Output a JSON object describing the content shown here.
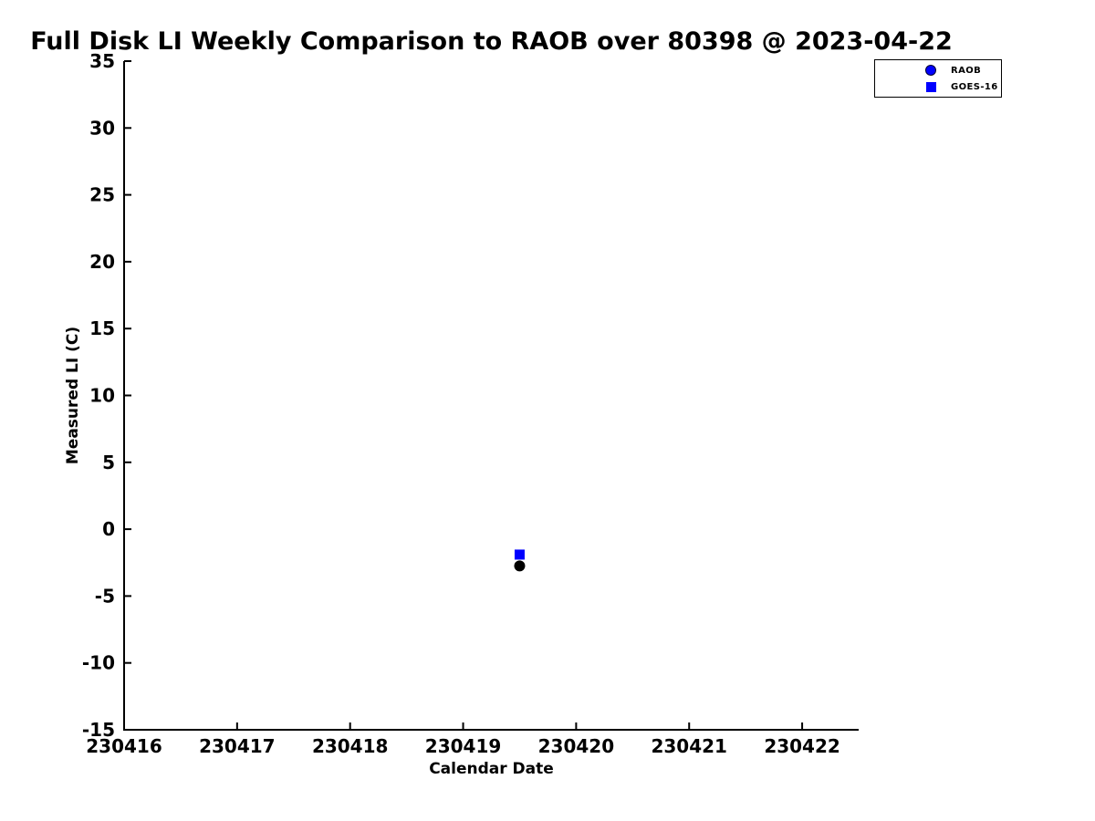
{
  "chart_data": {
    "type": "scatter",
    "title": "Full Disk LI Weekly Comparison to RAOB over 80398 @ 2023-04-22",
    "xlabel": "Calendar Date",
    "ylabel": "Measured LI (C)",
    "xlim": [
      230416,
      230422.5
    ],
    "ylim": [
      -15,
      35
    ],
    "xticks": [
      230416,
      230417,
      230418,
      230419,
      230420,
      230421,
      230422
    ],
    "yticks": [
      35,
      30,
      25,
      20,
      15,
      10,
      5,
      0,
      -5,
      -10,
      -15
    ],
    "grid": false,
    "tick_direction": "in",
    "axis_color": "#000000",
    "background_color": "#ffffff",
    "legend": {
      "position": "top-right",
      "border_color": "#000000",
      "entries": [
        "RAOB",
        "GOES-16"
      ]
    },
    "series": [
      {
        "name": "RAOB",
        "marker": "circle",
        "legend_marker_color": "#0000ff",
        "point_color": "#000000",
        "x": [
          230419.5
        ],
        "y": [
          -2.75
        ]
      },
      {
        "name": "GOES-16",
        "marker": "square",
        "legend_marker_color": "#0000ff",
        "point_color": "#0000ff",
        "x": [
          230419.5
        ],
        "y": [
          -1.9
        ]
      }
    ]
  }
}
